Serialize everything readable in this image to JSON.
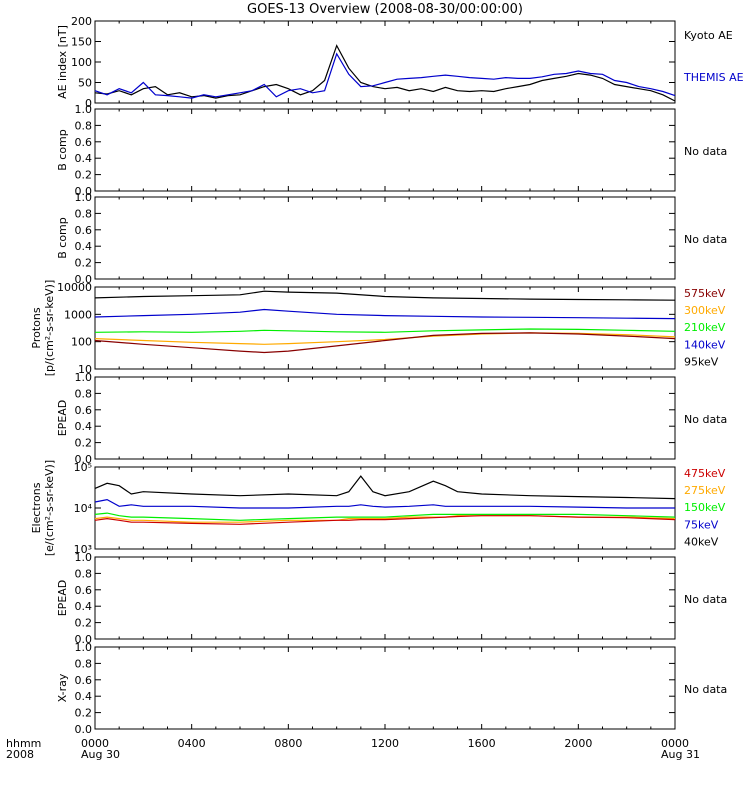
{
  "title": "GOES-13 Overview (2008-08-30/00:00:00)",
  "colors": {
    "black": "#000000",
    "blue": "#0000cc",
    "green": "#00ee00",
    "orange": "#ffaa00",
    "darkred": "#880000",
    "red": "#cc0000"
  },
  "chart_data": [
    {
      "type": "line",
      "ylabel": "AE index [nT]",
      "ylim": [
        0,
        200
      ],
      "yticks": [
        "0",
        "50",
        "100",
        "150",
        "200"
      ],
      "legend": [
        "Kyoto AE",
        "THEMIS AE"
      ],
      "x_hours": [
        0,
        0.5,
        1,
        1.5,
        2,
        2.5,
        3,
        3.5,
        4,
        4.5,
        5,
        5.5,
        6,
        6.5,
        7,
        7.5,
        8,
        8.5,
        9,
        9.5,
        10,
        10.5,
        11,
        11.5,
        12,
        12.5,
        13,
        13.5,
        14,
        14.5,
        15,
        15.5,
        16,
        16.5,
        17,
        17.5,
        18,
        18.5,
        19,
        19.5,
        20,
        20.5,
        21,
        21.5,
        22,
        22.5,
        23,
        23.5,
        24
      ],
      "series": [
        {
          "name": "Kyoto AE",
          "color": "black",
          "values": [
            25,
            22,
            30,
            20,
            35,
            40,
            20,
            25,
            15,
            18,
            12,
            18,
            20,
            30,
            40,
            45,
            35,
            20,
            30,
            55,
            140,
            85,
            50,
            40,
            35,
            38,
            30,
            35,
            28,
            38,
            30,
            28,
            30,
            28,
            35,
            40,
            45,
            55,
            60,
            65,
            72,
            68,
            60,
            45,
            40,
            35,
            30,
            20,
            5
          ]
        },
        {
          "name": "THEMIS AE",
          "color": "blue",
          "values": [
            30,
            20,
            35,
            25,
            50,
            20,
            18,
            15,
            12,
            20,
            15,
            20,
            25,
            30,
            45,
            15,
            30,
            35,
            25,
            30,
            120,
            70,
            40,
            42,
            50,
            58,
            60,
            62,
            65,
            68,
            65,
            62,
            60,
            58,
            62,
            60,
            60,
            64,
            70,
            72,
            78,
            72,
            70,
            55,
            50,
            40,
            35,
            28,
            18
          ]
        }
      ]
    },
    {
      "type": "line",
      "ylabel": "B comp",
      "ylim": [
        0,
        1
      ],
      "yticks": [
        "0.0",
        "0.2",
        "0.4",
        "0.6",
        "0.8",
        "1.0"
      ],
      "note": "No data"
    },
    {
      "type": "line",
      "ylabel": "B comp",
      "ylim": [
        0,
        1
      ],
      "yticks": [
        "0.0",
        "0.2",
        "0.4",
        "0.6",
        "0.8",
        "1.0"
      ],
      "note": "No data"
    },
    {
      "type": "line",
      "scale": "log",
      "ylabel": "Protons",
      "ylabel2": "[p/(cm²-s-sr-keV)]",
      "ylim": [
        10,
        10000
      ],
      "yticks": [
        "10",
        "100",
        "1000",
        "10000"
      ],
      "legend": [
        "575keV",
        "300keV",
        "210keV",
        "140keV",
        "95keV"
      ],
      "x_hours": [
        0,
        2,
        4,
        6,
        7,
        8,
        10,
        12,
        14,
        16,
        18,
        20,
        22,
        24
      ],
      "series": [
        {
          "name": "95keV",
          "color": "black",
          "values": [
            4000,
            4500,
            4800,
            5200,
            7000,
            6500,
            6000,
            4500,
            4000,
            3800,
            3600,
            3500,
            3400,
            3300
          ]
        },
        {
          "name": "140keV",
          "color": "blue",
          "values": [
            800,
            900,
            1000,
            1200,
            1500,
            1300,
            1000,
            900,
            850,
            800,
            780,
            750,
            720,
            700
          ]
        },
        {
          "name": "210keV",
          "color": "green",
          "values": [
            220,
            230,
            220,
            240,
            260,
            250,
            230,
            220,
            250,
            270,
            290,
            280,
            260,
            240
          ]
        },
        {
          "name": "300keV",
          "color": "orange",
          "values": [
            130,
            110,
            95,
            85,
            80,
            85,
            100,
            120,
            160,
            190,
            210,
            200,
            180,
            150
          ]
        },
        {
          "name": "575keV",
          "color": "darkred",
          "values": [
            110,
            80,
            60,
            45,
            40,
            45,
            70,
            110,
            170,
            200,
            210,
            190,
            160,
            130
          ]
        }
      ]
    },
    {
      "type": "line",
      "ylabel": "EPEAD",
      "ylim": [
        0,
        1
      ],
      "yticks": [
        "0.0",
        "0.2",
        "0.4",
        "0.6",
        "0.8",
        "1.0"
      ],
      "note": "No data"
    },
    {
      "type": "line",
      "scale": "log",
      "ylabel": "Electrons",
      "ylabel2": "[e/(cm²-s-sr-keV)]",
      "ylim": [
        1000,
        100000
      ],
      "yticks": [
        "10³",
        "10⁴",
        "10⁵"
      ],
      "legend": [
        "475keV",
        "275keV",
        "150keV",
        "75keV",
        "40keV"
      ],
      "x_hours": [
        0,
        0.5,
        1,
        1.5,
        2,
        4,
        6,
        8,
        10,
        10.5,
        11,
        11.5,
        12,
        13,
        14,
        14.5,
        15,
        16,
        18,
        20,
        22,
        24
      ],
      "series": [
        {
          "name": "40keV",
          "color": "black",
          "values": [
            30000,
            40000,
            35000,
            22000,
            25000,
            22000,
            20000,
            22000,
            20000,
            25000,
            60000,
            25000,
            20000,
            25000,
            45000,
            35000,
            25000,
            22000,
            20000,
            19000,
            18000,
            17000
          ]
        },
        {
          "name": "75keV",
          "color": "blue",
          "values": [
            14000,
            16000,
            11000,
            12000,
            11000,
            11000,
            10000,
            10000,
            11000,
            11000,
            12000,
            11000,
            10500,
            11000,
            12000,
            11000,
            11000,
            11000,
            11000,
            10500,
            10000,
            10000
          ]
        },
        {
          "name": "150keV",
          "color": "green",
          "values": [
            7000,
            7500,
            6500,
            6000,
            6000,
            5500,
            5000,
            5500,
            6000,
            6000,
            6000,
            6000,
            6000,
            6500,
            7000,
            7000,
            7000,
            7000,
            7000,
            7000,
            6500,
            6000
          ]
        },
        {
          "name": "275keV",
          "color": "orange",
          "values": [
            5500,
            6000,
            5500,
            5000,
            5000,
            4500,
            4500,
            5000,
            5000,
            5500,
            5500,
            5500,
            5500,
            6000,
            6000,
            6000,
            6500,
            6500,
            6500,
            6000,
            6000,
            5500
          ]
        },
        {
          "name": "475keV",
          "color": "red",
          "values": [
            5000,
            5500,
            5000,
            4500,
            4500,
            4200,
            4000,
            4500,
            5000,
            5000,
            5200,
            5200,
            5200,
            5500,
            5800,
            6000,
            6200,
            6500,
            6500,
            6000,
            5800,
            5200
          ]
        }
      ]
    },
    {
      "type": "line",
      "ylabel": "EPEAD",
      "ylim": [
        0,
        1
      ],
      "yticks": [
        "0.0",
        "0.2",
        "0.4",
        "0.6",
        "0.8",
        "1.0"
      ],
      "note": "No data"
    },
    {
      "type": "line",
      "ylabel": "X-ray",
      "ylim": [
        0,
        1
      ],
      "yticks": [
        "0.0",
        "0.2",
        "0.4",
        "0.6",
        "0.8",
        "1.0"
      ],
      "note": "No data"
    }
  ],
  "xaxis": {
    "xlim": [
      0,
      24
    ],
    "tick_hours": [
      0,
      4,
      8,
      12,
      16,
      20,
      24
    ],
    "tick_labels": [
      "0000",
      "0400",
      "0800",
      "1200",
      "1600",
      "2000",
      "0000"
    ],
    "sublabels": [
      "Aug 30",
      "Aug 31"
    ],
    "left_caption": [
      "hhmm",
      "2008"
    ]
  }
}
